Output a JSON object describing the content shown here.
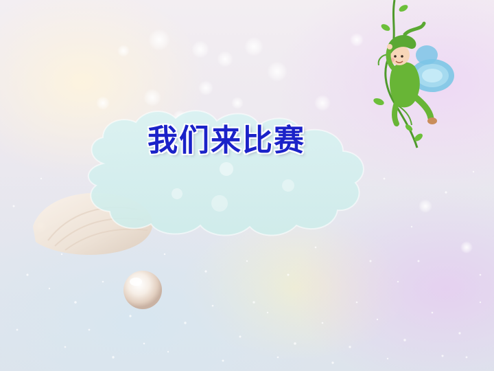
{
  "slide": {
    "title": "我们来比赛"
  },
  "colors": {
    "title": "#1b22c8",
    "cloud": "#d6f0ef",
    "vine": "#4f9a2c",
    "fairy_suit": "#68b536",
    "wing": "#7cc6e6"
  },
  "decorations": {
    "background": "bokeh-sparkle-icon",
    "shell": "seashell-icon",
    "pearl": "pearl-icon",
    "fairy": "fairy-on-vine-icon"
  }
}
